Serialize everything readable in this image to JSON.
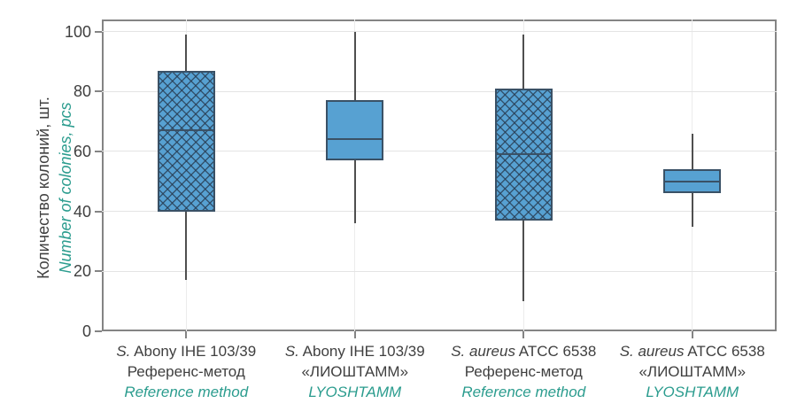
{
  "chart_data": {
    "type": "box",
    "title": "",
    "ylabel_ru": "Количество колоний, шт.",
    "ylabel_en": "Number of colonies, pcs",
    "ylim": [
      0,
      104
    ],
    "yticks": [
      0,
      20,
      40,
      60,
      80,
      100
    ],
    "grid": true,
    "legend": "none",
    "categories": [
      {
        "species": "S.",
        "strain": "Abony IHE 103/39",
        "method_ru": "Референс-метод",
        "method_en": "Reference method"
      },
      {
        "species": "S.",
        "strain": "Abony IHE 103/39",
        "method_ru": "«ЛИОШТАММ»",
        "method_en": "LYOSHTAMM"
      },
      {
        "species": "S. aureus",
        "strain": "ATCC 6538",
        "method_ru": "Референс-метод",
        "method_en": "Reference method"
      },
      {
        "species": "S. aureus",
        "strain": "ATCC 6538",
        "method_ru": "«ЛИОШТАММ»",
        "method_en": "LYOSHTAMM"
      }
    ],
    "boxes": [
      {
        "whisker_low": 17,
        "q1": 40,
        "median": 67,
        "q3": 87,
        "whisker_high": 99,
        "hatched": true
      },
      {
        "whisker_low": 36,
        "q1": 57,
        "median": 64,
        "q3": 77,
        "whisker_high": 100,
        "hatched": false
      },
      {
        "whisker_low": 10,
        "q1": 37,
        "median": 59,
        "q3": 81,
        "whisker_high": 99,
        "hatched": true
      },
      {
        "whisker_low": 35,
        "q1": 46,
        "median": 50,
        "q3": 54,
        "whisker_high": 66,
        "hatched": false
      }
    ],
    "colors": {
      "box_fill": "#57a1d2",
      "box_border": "#3a5166",
      "median_line": "#3a5166",
      "whisker": "#4f4f4f",
      "hatch_line": "#273a4f",
      "grid_line": "#e4e4e4",
      "spine": "#848484",
      "tick_text": "#3f3f3f",
      "label_teal": "#2b9c8e"
    }
  }
}
